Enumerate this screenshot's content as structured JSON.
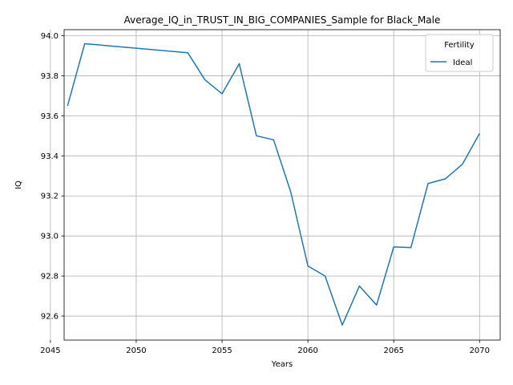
{
  "chart_data": {
    "type": "line",
    "title": "Average_IQ_in_TRUST_IN_BIG_COMPANIES_Sample for Black_Male",
    "xlabel": "Years",
    "ylabel": "IQ",
    "xlim": [
      2045.8,
      2071.2
    ],
    "ylim": [
      92.48,
      94.03
    ],
    "xticks": [
      2045,
      2050,
      2055,
      2060,
      2065,
      2070
    ],
    "yticks": [
      92.6,
      92.8,
      93.0,
      93.2,
      93.4,
      93.6,
      93.8,
      94.0
    ],
    "grid": true,
    "legend": {
      "title": "Fertility",
      "position": "top-right"
    },
    "series": [
      {
        "name": "Ideal",
        "color": "#1f77b4",
        "x": [
          2046,
          2047,
          2053,
          2054,
          2055,
          2056,
          2057,
          2058,
          2059,
          2060,
          2061,
          2062,
          2063,
          2064,
          2065,
          2066,
          2067,
          2068,
          2069,
          2070
        ],
        "values": [
          93.65,
          93.96,
          93.915,
          93.78,
          93.71,
          93.86,
          93.5,
          93.48,
          93.22,
          92.85,
          92.8,
          92.555,
          92.75,
          92.655,
          92.945,
          92.942,
          93.262,
          93.285,
          93.358,
          93.512
        ]
      }
    ]
  }
}
